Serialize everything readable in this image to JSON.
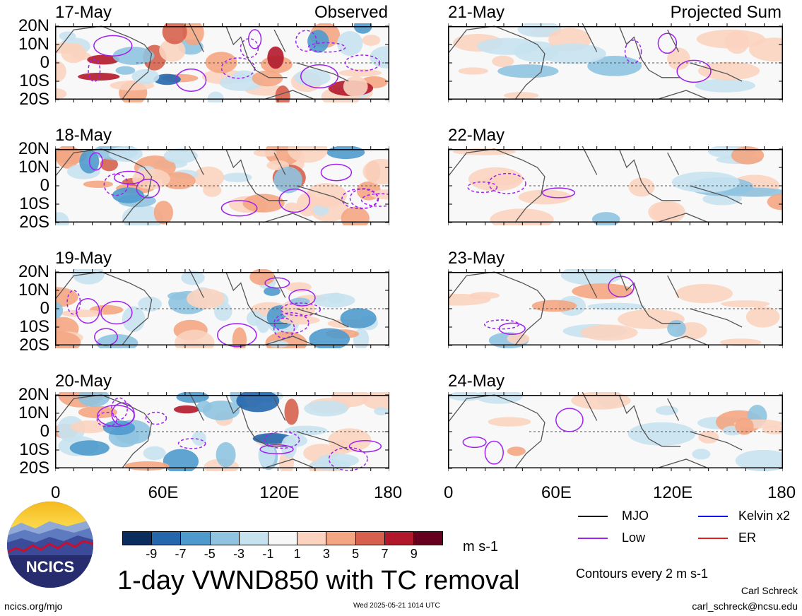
{
  "panels": {
    "left": [
      {
        "date": "17-May",
        "header": "Observed"
      },
      {
        "date": "18-May",
        "header": ""
      },
      {
        "date": "19-May",
        "header": ""
      },
      {
        "date": "20-May",
        "header": ""
      }
    ],
    "right": [
      {
        "date": "21-May",
        "header": "Projected Sum"
      },
      {
        "date": "22-May",
        "header": ""
      },
      {
        "date": "23-May",
        "header": ""
      },
      {
        "date": "24-May",
        "header": ""
      }
    ]
  },
  "lat_labels": [
    "20N",
    "10N",
    "0",
    "10S",
    "20S"
  ],
  "lon_labels": [
    "0",
    "60E",
    "120E",
    "180"
  ],
  "colorbar": {
    "labels": [
      "-9",
      "-7",
      "-5",
      "-3",
      "-1",
      "1",
      "3",
      "5",
      "7",
      "9"
    ],
    "colors": [
      "#0b2d5e",
      "#2467ad",
      "#4f9acd",
      "#8fc3e0",
      "#c7e2ef",
      "#f7f7f7",
      "#fbd3bf",
      "#f4a683",
      "#d6604d",
      "#b2182b",
      "#67001f"
    ],
    "units": "m s-1"
  },
  "title": "1-day VWND850 with TC removal",
  "legend": {
    "items": [
      {
        "label": "MJO",
        "color": "#000000"
      },
      {
        "label": "Kelvin x2",
        "color": "#0000ff"
      },
      {
        "label": "Low",
        "color": "#a020f0"
      },
      {
        "label": "ER",
        "color": "#e02020"
      }
    ],
    "note": "Contours every 2 m s-1"
  },
  "author": "Carl Schreck",
  "email": "carl_schreck@ncsu.edu",
  "site": "ncics.org/mjo",
  "timestamp": "Wed 2025-05-21 1014 UTC",
  "logo_text": "NCICS",
  "chart_data": {
    "type": "heatmap",
    "variable": "VWND850",
    "units": "m s-1",
    "x_range": [
      0,
      180
    ],
    "y_range": [
      -20,
      20
    ],
    "contour_interval": 2,
    "observed_dates": [
      "17-May",
      "18-May",
      "19-May",
      "20-May"
    ],
    "projected_dates": [
      "21-May",
      "22-May",
      "23-May",
      "24-May"
    ]
  }
}
